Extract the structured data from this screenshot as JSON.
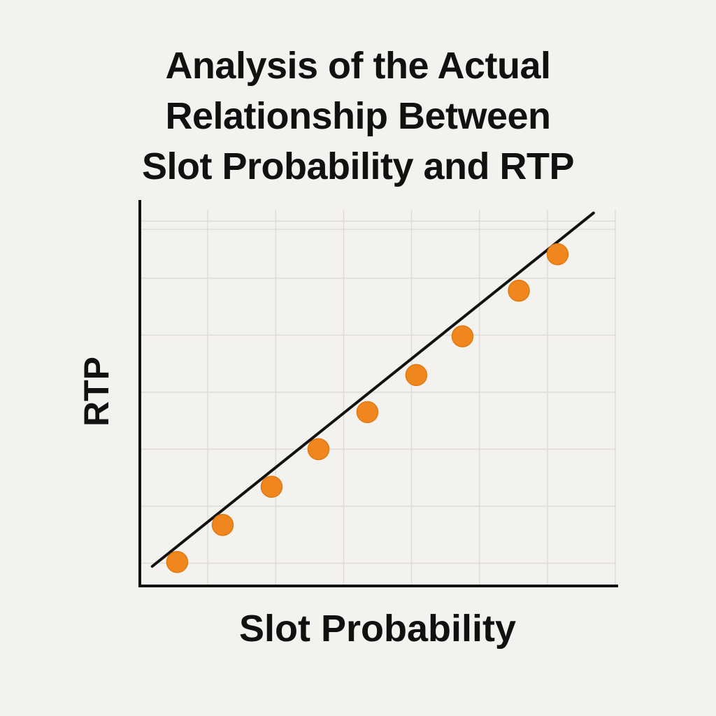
{
  "chart_data": {
    "type": "scatter",
    "title_lines": [
      "Analysis of the Actual",
      "Relationship Between",
      "Slot Probability and RTP"
    ],
    "xlabel": "Slot Probability",
    "ylabel": "RTP",
    "xlim": [
      0,
      7
    ],
    "ylim": [
      0,
      6.6
    ],
    "grid": true,
    "legend": "none",
    "series": [
      {
        "marker_color": "#f0861e",
        "points": [
          {
            "x": 0.55,
            "y": 0.42
          },
          {
            "x": 1.22,
            "y": 1.07
          },
          {
            "x": 1.94,
            "y": 1.74
          },
          {
            "x": 2.63,
            "y": 2.4
          },
          {
            "x": 3.35,
            "y": 3.05
          },
          {
            "x": 4.07,
            "y": 3.7
          },
          {
            "x": 4.75,
            "y": 4.38
          },
          {
            "x": 5.58,
            "y": 5.18
          },
          {
            "x": 6.15,
            "y": 5.82
          }
        ]
      }
    ],
    "trend_line": {
      "color": "#111111",
      "from": {
        "x": 0.1,
        "y": 0.0
      },
      "to": {
        "x": 6.7,
        "y": 6.2
      }
    }
  },
  "colors": {
    "background": "#f4f2ee",
    "grid": "#dedcd8",
    "axis": "#111111",
    "text": "#111111"
  }
}
